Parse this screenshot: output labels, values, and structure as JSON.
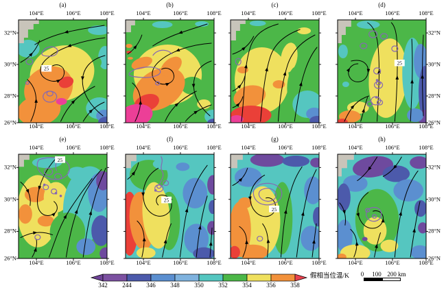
{
  "panels": [
    {
      "id": "a",
      "title": "(a)",
      "peak_label": "25"
    },
    {
      "id": "b",
      "title": "(b)",
      "peak_label": null
    },
    {
      "id": "c",
      "title": "(c)",
      "peak_label": null
    },
    {
      "id": "d",
      "title": "(d)",
      "peak_label": "25"
    },
    {
      "id": "e",
      "title": "(e)",
      "peak_label": "25"
    },
    {
      "id": "f",
      "title": "(f)",
      "peak_label": "25"
    },
    {
      "id": "g",
      "title": "(g)",
      "peak_label": "25"
    },
    {
      "id": "h",
      "title": "(h)",
      "peak_label": null
    }
  ],
  "axes": {
    "lon_ticks": [
      "104°E",
      "106°E",
      "108°E"
    ],
    "lat_ticks": [
      "32°N",
      "30°N",
      "28°N",
      "26°N"
    ]
  },
  "colorbar": {
    "title": "假相当位温/K",
    "tick_labels": [
      "342",
      "244",
      "346",
      "348",
      "350",
      "352",
      "354",
      "356",
      "358"
    ],
    "segment_colors": [
      "#7C51A1",
      "#4C5AAB",
      "#5B8FD0",
      "#7FB2DE",
      "#54C6C0",
      "#4CB748",
      "#EFE05E",
      "#F2913B"
    ],
    "arrow_left_color": "#6E4397",
    "arrow_right_color": "#E8414E"
  },
  "scale_bar": {
    "tick_labels": [
      "0",
      "100",
      "200"
    ],
    "unit": "km"
  },
  "map_palette": {
    "gray": "#C8C4BA",
    "purple": "#6E4A9E",
    "indigo": "#4C5AAB",
    "blue": "#5B8FD0",
    "lightblue": "#7FB2DE",
    "teal": "#55C6C0",
    "green": "#4CB748",
    "yellow": "#EFE05E",
    "orange": "#F2913B",
    "red": "#EA4038",
    "magenta": "#EC3F97",
    "contour_purple": "#8668B2",
    "streamline_black": "#000000"
  }
}
